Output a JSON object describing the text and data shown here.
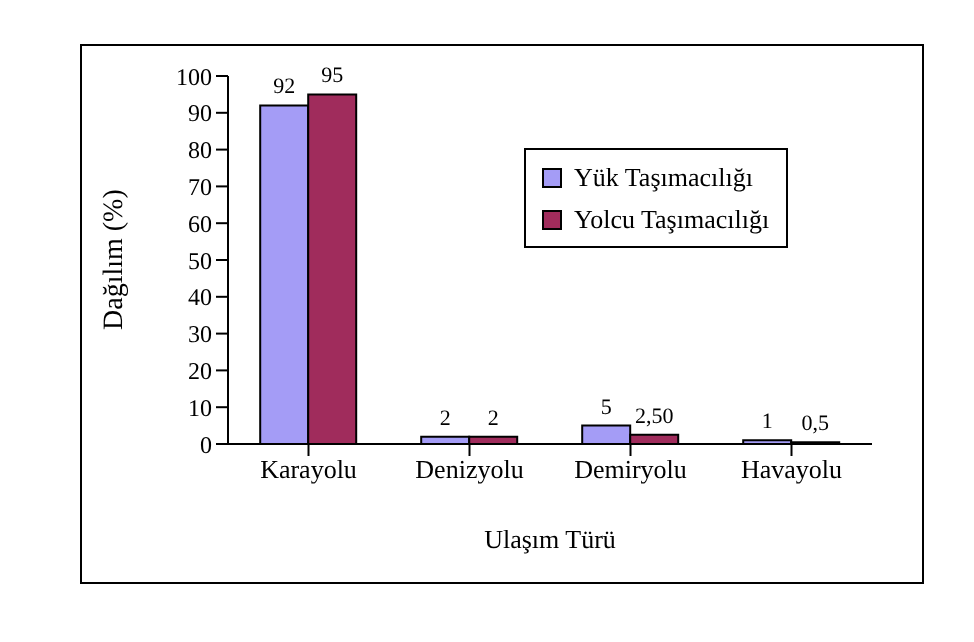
{
  "chart_data": {
    "type": "bar",
    "xlabel": "Ulaşım Türü",
    "ylabel": "Dağılım (%)",
    "categories": [
      "Karayolu",
      "Denizyolu",
      "Demiryolu",
      "Havayolu"
    ],
    "series": [
      {
        "name": "Yük Taşımacılığı",
        "color": "#a49cf6",
        "values": [
          92,
          2,
          5,
          1
        ],
        "value_labels": [
          "92",
          "2",
          "5",
          "1"
        ]
      },
      {
        "name": "Yolcu Taşımacılığı",
        "color": "#a02c5c",
        "values": [
          95,
          2,
          2.5,
          0.5
        ],
        "value_labels": [
          "95",
          "2",
          "2,50",
          "0,5"
        ]
      }
    ],
    "ylim": [
      0,
      100
    ],
    "yticks": [
      0,
      10,
      20,
      30,
      40,
      50,
      60,
      70,
      80,
      90,
      100
    ],
    "grid": false,
    "legend": "top right"
  }
}
